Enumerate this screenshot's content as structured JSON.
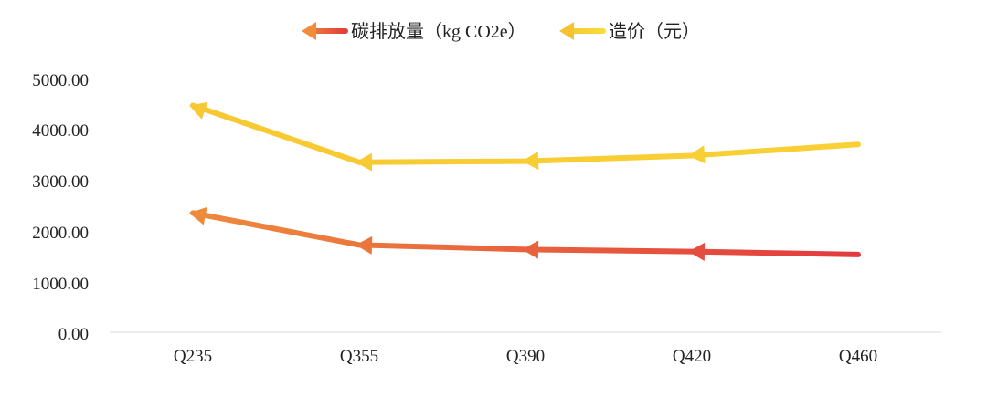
{
  "chart_data": {
    "type": "line",
    "title": "",
    "xlabel": "",
    "ylabel": "",
    "categories": [
      "Q235",
      "Q355",
      "Q390",
      "Q420",
      "Q460"
    ],
    "ylim": [
      0,
      5000
    ],
    "yticks": [
      "0.00",
      "1000.00",
      "2000.00",
      "3000.00",
      "4000.00",
      "5000.00"
    ],
    "grid": false,
    "legend_position": "top-center",
    "series": [
      {
        "name": "碳排放量（kg CO2e）",
        "values": [
          2350,
          1720,
          1630,
          1590,
          1530
        ],
        "color_start": "#ee8a3c",
        "color_end": "#e23a3f",
        "legend_color_start": "#f08c3c",
        "legend_color_end": "#e03f3a"
      },
      {
        "name": "造价（元）",
        "values": [
          4470,
          3350,
          3370,
          3480,
          3700
        ],
        "color_start": "#f7c833",
        "color_end": "#f8d135",
        "legend_color_start": "#f5c332",
        "legend_color_end": "#f8dc38"
      }
    ]
  }
}
